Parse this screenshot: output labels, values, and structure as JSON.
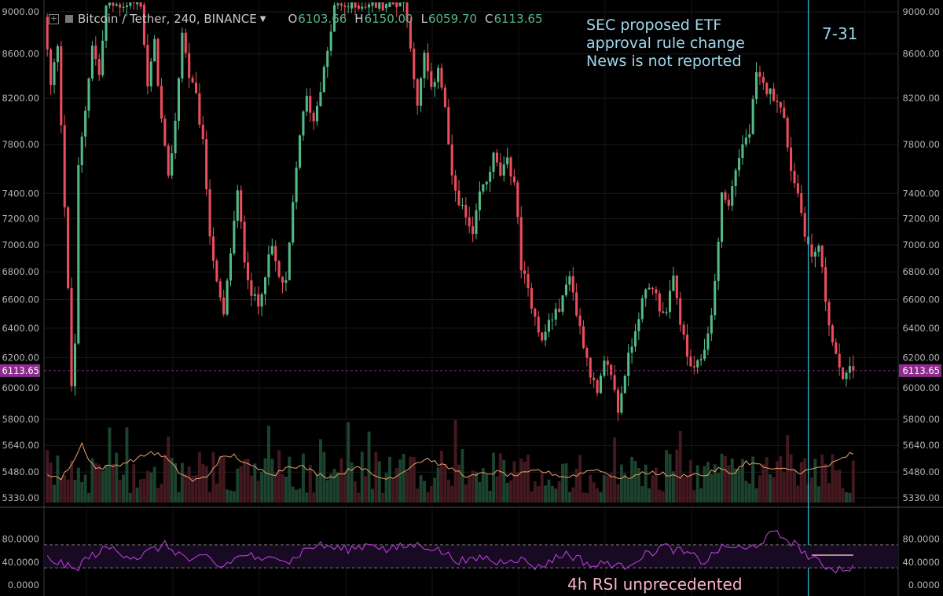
{
  "header": {
    "title": "Bitcoin / Tether, 240, BINANCE",
    "open_label": "O",
    "open": "6103.66",
    "high_label": "H",
    "high": "6150.00",
    "low_label": "L",
    "low": "6059.70",
    "close_label": "C",
    "close": "6113.65"
  },
  "annotations": {
    "etf_note_lines": [
      "SEC proposed ETF",
      "approval rule change",
      "News is not reported"
    ],
    "date_marker": "7-31",
    "rsi_note": "4h RSI unprecedented"
  },
  "colors": {
    "background": "#000000",
    "up": "#53b987",
    "down": "#eb4d5c",
    "ma": "#e8a070",
    "rsi": "#b63fd6",
    "vline": "#28b8c8",
    "price_tag": "#8e2c8e",
    "annotation": "#9fd6ea",
    "rsi_note": "#f5b3c6"
  },
  "chart_data": [
    {
      "type": "candlestick",
      "symbol": "Bitcoin / Tether",
      "interval": "240",
      "exchange": "BINANCE",
      "y_scale": "log",
      "ylim": [
        5300,
        9100
      ],
      "price_ticks": [
        "9000.00",
        "8600.00",
        "8200.00",
        "7800.00",
        "7400.00",
        "7200.00",
        "7000.00",
        "6800.00",
        "6600.00",
        "6400.00",
        "6200.00",
        "6000.00",
        "5800.00",
        "5640.00",
        "5480.00",
        "5330.00"
      ],
      "current_price": "6113.65",
      "grid": true,
      "price_path": [
        [
          0,
          8950
        ],
        [
          2,
          8300
        ],
        [
          4,
          8700
        ],
        [
          6,
          7300
        ],
        [
          8,
          6010
        ],
        [
          9,
          6300
        ],
        [
          10,
          7600
        ],
        [
          12,
          8100
        ],
        [
          14,
          8700
        ],
        [
          16,
          8400
        ],
        [
          18,
          9050
        ],
        [
          28,
          9100
        ],
        [
          30,
          8300
        ],
        [
          32,
          8700
        ],
        [
          34,
          8000
        ],
        [
          36,
          7500
        ],
        [
          38,
          8000
        ],
        [
          40,
          8800
        ],
        [
          42,
          8400
        ],
        [
          44,
          8200
        ],
        [
          46,
          7800
        ],
        [
          48,
          7100
        ],
        [
          50,
          6700
        ],
        [
          52,
          6480
        ],
        [
          54,
          6950
        ],
        [
          56,
          7400
        ],
        [
          58,
          6900
        ],
        [
          60,
          6650
        ],
        [
          62,
          6550
        ],
        [
          64,
          6800
        ],
        [
          66,
          6980
        ],
        [
          68,
          6750
        ],
        [
          70,
          6700
        ],
        [
          72,
          7300
        ],
        [
          74,
          7900
        ],
        [
          76,
          8200
        ],
        [
          78,
          8000
        ],
        [
          80,
          8300
        ],
        [
          82,
          8600
        ],
        [
          84,
          9050
        ],
        [
          104,
          9100
        ],
        [
          106,
          8700
        ],
        [
          108,
          8100
        ],
        [
          110,
          8600
        ],
        [
          112,
          8250
        ],
        [
          114,
          8500
        ],
        [
          116,
          8100
        ],
        [
          118,
          7500
        ],
        [
          120,
          7350
        ],
        [
          122,
          7200
        ],
        [
          124,
          7050
        ],
        [
          126,
          7400
        ],
        [
          128,
          7500
        ],
        [
          130,
          7700
        ],
        [
          132,
          7550
        ],
        [
          134,
          7650
        ],
        [
          136,
          7500
        ],
        [
          138,
          6850
        ],
        [
          140,
          6650
        ],
        [
          142,
          6500
        ],
        [
          144,
          6300
        ],
        [
          146,
          6450
        ],
        [
          148,
          6500
        ],
        [
          150,
          6600
        ],
        [
          152,
          6800
        ],
        [
          154,
          6500
        ],
        [
          156,
          6300
        ],
        [
          158,
          6100
        ],
        [
          160,
          5950
        ],
        [
          162,
          6150
        ],
        [
          164,
          6100
        ],
        [
          166,
          5850
        ],
        [
          168,
          6100
        ],
        [
          170,
          6300
        ],
        [
          172,
          6500
        ],
        [
          174,
          6650
        ],
        [
          176,
          6700
        ],
        [
          178,
          6550
        ],
        [
          180,
          6500
        ],
        [
          182,
          6750
        ],
        [
          184,
          6450
        ],
        [
          186,
          6200
        ],
        [
          188,
          6100
        ],
        [
          190,
          6200
        ],
        [
          192,
          6350
        ],
        [
          194,
          6700
        ],
        [
          196,
          7400
        ],
        [
          198,
          7300
        ],
        [
          200,
          7600
        ],
        [
          202,
          7800
        ],
        [
          204,
          7900
        ],
        [
          206,
          8400
        ],
        [
          208,
          8300
        ],
        [
          210,
          8250
        ],
        [
          212,
          8200
        ],
        [
          214,
          8000
        ],
        [
          216,
          7600
        ],
        [
          218,
          7400
        ],
        [
          220,
          7100
        ],
        [
          222,
          6900
        ],
        [
          224,
          7000
        ],
        [
          226,
          6600
        ],
        [
          228,
          6300
        ],
        [
          230,
          6100
        ],
        [
          232,
          6080
        ],
        [
          233,
          6113
        ]
      ],
      "volume_ma_path": [
        [
          0,
          5470
        ],
        [
          4,
          5440
        ],
        [
          8,
          5560
        ],
        [
          10,
          5650
        ],
        [
          12,
          5560
        ],
        [
          14,
          5500
        ],
        [
          20,
          5520
        ],
        [
          26,
          5560
        ],
        [
          30,
          5600
        ],
        [
          34,
          5570
        ],
        [
          38,
          5480
        ],
        [
          42,
          5430
        ],
        [
          46,
          5450
        ],
        [
          50,
          5560
        ],
        [
          54,
          5580
        ],
        [
          58,
          5520
        ],
        [
          62,
          5490
        ],
        [
          66,
          5470
        ],
        [
          70,
          5520
        ],
        [
          74,
          5510
        ],
        [
          78,
          5470
        ],
        [
          82,
          5450
        ],
        [
          86,
          5480
        ],
        [
          90,
          5520
        ],
        [
          94,
          5460
        ],
        [
          98,
          5440
        ],
        [
          102,
          5470
        ],
        [
          106,
          5530
        ],
        [
          110,
          5560
        ],
        [
          114,
          5520
        ],
        [
          118,
          5490
        ],
        [
          122,
          5450
        ],
        [
          126,
          5470
        ],
        [
          130,
          5480
        ],
        [
          134,
          5460
        ],
        [
          138,
          5470
        ],
        [
          142,
          5490
        ],
        [
          146,
          5470
        ],
        [
          150,
          5450
        ],
        [
          154,
          5470
        ],
        [
          158,
          5500
        ],
        [
          162,
          5470
        ],
        [
          166,
          5440
        ],
        [
          170,
          5460
        ],
        [
          174,
          5480
        ],
        [
          178,
          5470
        ],
        [
          182,
          5450
        ],
        [
          186,
          5470
        ],
        [
          190,
          5460
        ],
        [
          194,
          5500
        ],
        [
          198,
          5470
        ],
        [
          202,
          5540
        ],
        [
          206,
          5520
        ],
        [
          210,
          5490
        ],
        [
          214,
          5500
        ],
        [
          218,
          5480
        ],
        [
          222,
          5500
        ],
        [
          226,
          5520
        ],
        [
          230,
          5560
        ],
        [
          232,
          5590
        ],
        [
          233,
          5580
        ]
      ],
      "vertical_marker": {
        "at_index": 220,
        "label": "7-31"
      }
    },
    {
      "type": "line",
      "name": "RSI",
      "ylim": [
        0,
        100
      ],
      "ticks": [
        "80.0000",
        "40.0000",
        "0.0000"
      ],
      "bands": [
        70,
        30
      ],
      "rsi_path": [
        [
          0,
          46
        ],
        [
          4,
          38
        ],
        [
          8,
          25
        ],
        [
          10,
          40
        ],
        [
          14,
          55
        ],
        [
          18,
          65
        ],
        [
          22,
          55
        ],
        [
          26,
          48
        ],
        [
          30,
          60
        ],
        [
          34,
          70
        ],
        [
          38,
          55
        ],
        [
          42,
          40
        ],
        [
          46,
          50
        ],
        [
          50,
          30
        ],
        [
          54,
          45
        ],
        [
          58,
          55
        ],
        [
          62,
          38
        ],
        [
          66,
          55
        ],
        [
          70,
          40
        ],
        [
          74,
          60
        ],
        [
          78,
          70
        ],
        [
          82,
          66
        ],
        [
          86,
          62
        ],
        [
          90,
          66
        ],
        [
          94,
          74
        ],
        [
          98,
          60
        ],
        [
          102,
          66
        ],
        [
          106,
          70
        ],
        [
          110,
          68
        ],
        [
          114,
          58
        ],
        [
          118,
          45
        ],
        [
          122,
          40
        ],
        [
          126,
          50
        ],
        [
          130,
          38
        ],
        [
          134,
          48
        ],
        [
          138,
          42
        ],
        [
          142,
          30
        ],
        [
          146,
          45
        ],
        [
          150,
          55
        ],
        [
          154,
          45
        ],
        [
          158,
          32
        ],
        [
          162,
          40
        ],
        [
          166,
          30
        ],
        [
          170,
          45
        ],
        [
          174,
          55
        ],
        [
          178,
          68
        ],
        [
          182,
          60
        ],
        [
          186,
          52
        ],
        [
          190,
          40
        ],
        [
          194,
          62
        ],
        [
          198,
          68
        ],
        [
          202,
          60
        ],
        [
          206,
          75
        ],
        [
          210,
          90
        ],
        [
          214,
          80
        ],
        [
          218,
          62
        ],
        [
          220,
          50
        ],
        [
          224,
          35
        ],
        [
          228,
          28
        ],
        [
          232,
          30
        ],
        [
          233,
          30
        ]
      ],
      "annotation": {
        "label": "4h RSI unprecedented",
        "level": 52
      }
    }
  ]
}
